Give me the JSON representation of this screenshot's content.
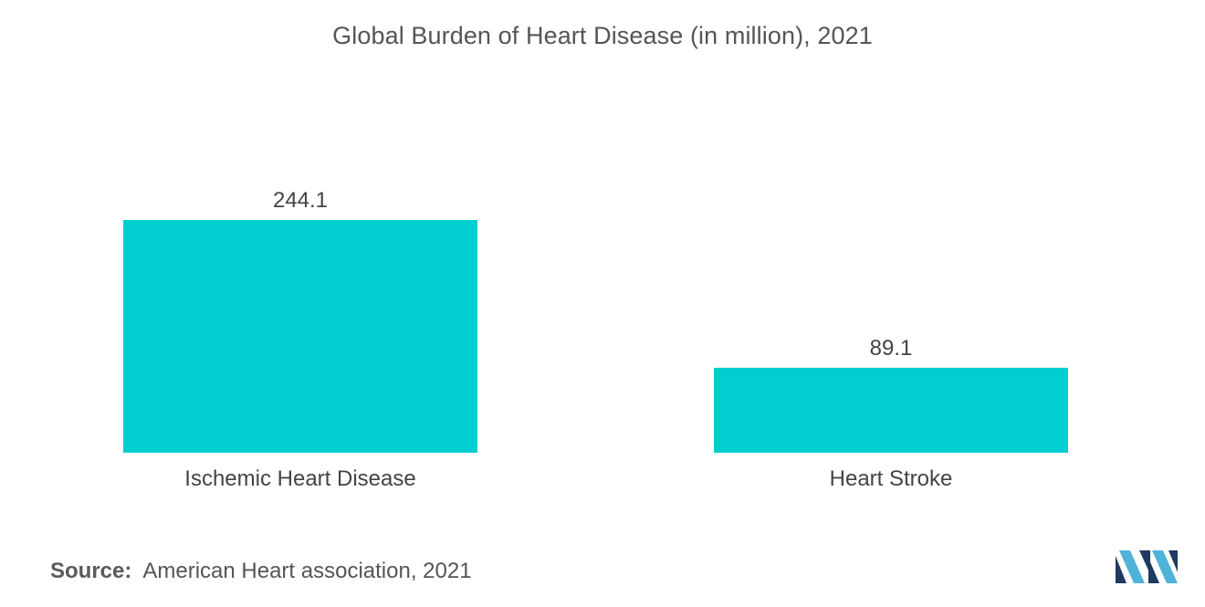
{
  "chart_data": {
    "type": "bar",
    "title": "Global Burden of Heart Disease (in million), 2021",
    "categories": [
      "Ischemic Heart Disease",
      "Heart Stroke"
    ],
    "values": [
      244.1,
      89.1
    ],
    "data_labels": [
      "244.1",
      "89.1"
    ],
    "xlabel": "",
    "ylabel": "",
    "ylim": [
      0,
      244.1
    ],
    "grid": false,
    "bar_color": "#00CED1"
  },
  "footer": {
    "source_label": "Source:",
    "source_text": "American Heart association, 2021"
  },
  "logo": {
    "icon": "mordor-intelligence-logo-icon",
    "colors": [
      "#1E3A5F",
      "#4FB3D9"
    ]
  }
}
